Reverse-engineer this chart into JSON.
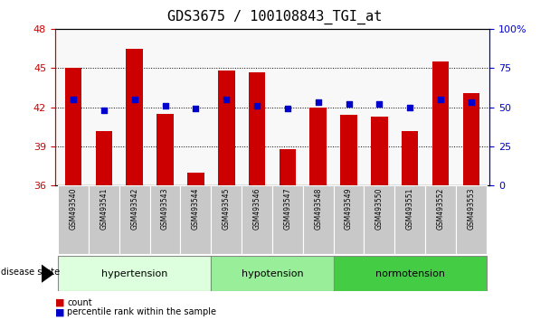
{
  "title": "GDS3675 / 100108843_TGI_at",
  "samples": [
    "GSM493540",
    "GSM493541",
    "GSM493542",
    "GSM493543",
    "GSM493544",
    "GSM493545",
    "GSM493546",
    "GSM493547",
    "GSM493548",
    "GSM493549",
    "GSM493550",
    "GSM493551",
    "GSM493552",
    "GSM493553"
  ],
  "red_values": [
    45.0,
    40.2,
    46.5,
    41.5,
    37.0,
    44.8,
    44.7,
    38.8,
    42.0,
    41.4,
    41.3,
    40.2,
    45.5,
    43.1
  ],
  "blue_values": [
    55,
    48,
    55,
    51,
    49,
    55,
    51,
    49,
    53,
    52,
    52,
    50,
    55,
    53
  ],
  "ylim_left": [
    36,
    48
  ],
  "ylim_right": [
    0,
    100
  ],
  "yticks_left": [
    36,
    39,
    42,
    45,
    48
  ],
  "yticks_right": [
    0,
    25,
    50,
    75,
    100
  ],
  "bar_color": "#cc0000",
  "dot_color": "#0000cc",
  "group_colors": [
    "#ddffdd",
    "#99ee99",
    "#44cc44"
  ],
  "groups": [
    {
      "label": "hypertension",
      "start": 0,
      "end": 5
    },
    {
      "label": "hypotension",
      "start": 5,
      "end": 9
    },
    {
      "label": "normotension",
      "start": 9,
      "end": 14
    }
  ],
  "tick_label_color_left": "#cc0000",
  "tick_label_color_right": "#0000cc",
  "background_color": "#ffffff",
  "title_fontsize": 11
}
